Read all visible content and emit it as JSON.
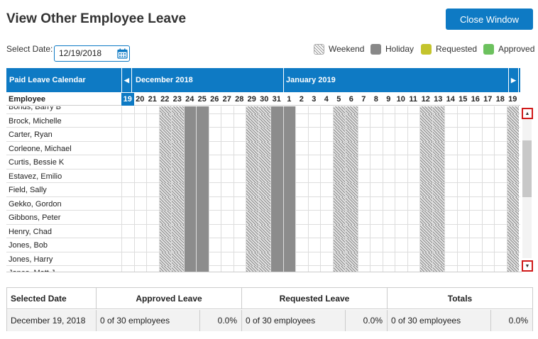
{
  "page": {
    "title": "View Other Employee Leave",
    "close_label": "Close Window"
  },
  "date": {
    "label": "Select Date:",
    "value": "12/19/2018"
  },
  "legend": [
    {
      "label": "Weekend",
      "color": "#999999"
    },
    {
      "label": "Holiday",
      "color": "#888888"
    },
    {
      "label": "Requested",
      "color": "#c4c42d"
    },
    {
      "label": "Approved",
      "color": "#6cc15e"
    }
  ],
  "calendar": {
    "header_label": "Paid Leave Calendar",
    "months": [
      "December 2018",
      "January 2019"
    ],
    "employee_header": "Employee",
    "days": [
      "19",
      "20",
      "21",
      "22",
      "23",
      "24",
      "25",
      "26",
      "27",
      "28",
      "29",
      "30",
      "31",
      "1",
      "2",
      "3",
      "4",
      "5",
      "6",
      "7",
      "8",
      "9",
      "10",
      "11",
      "12",
      "13",
      "14",
      "15",
      "16",
      "17",
      "18",
      "19"
    ],
    "day_types": [
      "",
      "",
      "",
      "we",
      "we",
      "hol",
      "hol",
      "",
      "",
      "",
      "we",
      "we",
      "hol",
      "hol",
      "",
      "",
      "",
      "we",
      "we",
      "",
      "",
      "",
      "",
      "",
      "we",
      "we",
      "",
      "",
      "",
      "",
      "",
      "we"
    ],
    "today_index": 0,
    "employees": [
      "Bonds, Barry B",
      "Brock, Michelle",
      "Carter, Ryan",
      "Corleone, Michael",
      "Curtis, Bessie K",
      "Estavez, Emilio",
      "Field, Sally",
      "Gekko, Gordon",
      "Gibbons, Peter",
      "Henry, Chad",
      "Jones, Bob",
      "Jones, Harry",
      "Jones, Matt J"
    ]
  },
  "summary": {
    "headers": {
      "selected": "Selected Date",
      "approved": "Approved Leave",
      "requested": "Requested Leave",
      "totals": "Totals"
    },
    "row": {
      "date": "December 19, 2018",
      "approved_count": "0 of 30 employees",
      "approved_pct": "0.0%",
      "requested_count": "0 of 30 employees",
      "requested_pct": "0.0%",
      "totals_count": "0 of 30 employees",
      "totals_pct": "0.0%"
    }
  },
  "colors": {
    "accent": "#0e7ac4",
    "holiday": "#8c8c8c"
  }
}
